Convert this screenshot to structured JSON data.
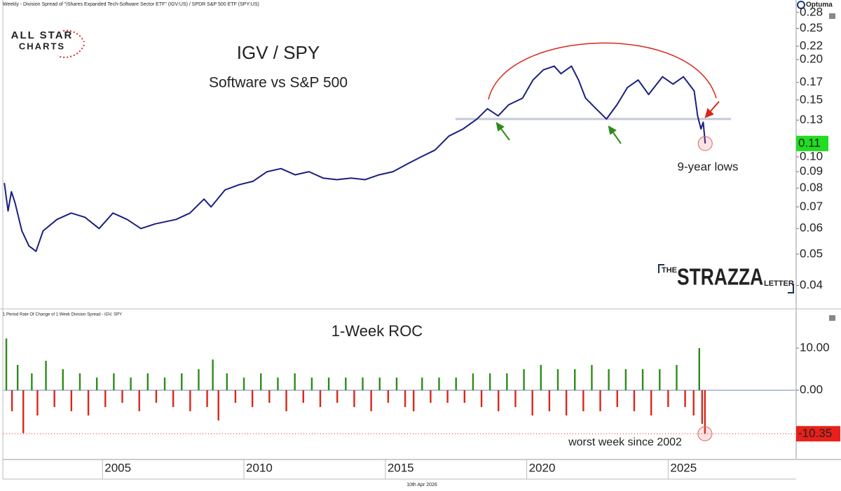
{
  "header": "Weekly - Division Spread of \"iShares Expanded Tech-Software Sector ETF\" (IGV:US) / SPDR S&P 500 ETF (SPY:US)",
  "brand": "Optuma",
  "date_label": "10th Apr 2026",
  "logo": {
    "line1": "ALL STAR",
    "line2": "CHARTS"
  },
  "strazza": {
    "the": "THE",
    "name": "STRAZZA",
    "letter": "LETTER"
  },
  "chart_data": [
    {
      "type": "line",
      "title": "IGV / SPY",
      "subtitle": "Software vs S&P 500",
      "annotation": "9-year lows",
      "color": "#1a1f80",
      "log_scale": true,
      "x": [
        2001.53,
        2001.66,
        2001.78,
        2001.91,
        2002.15,
        2002.4,
        2002.65,
        2002.9,
        2003.39,
        2003.89,
        2004.38,
        2004.88,
        2005.37,
        2005.87,
        2006.36,
        2006.86,
        2007.6,
        2008.09,
        2008.59,
        2008.84,
        2009.33,
        2009.83,
        2010.32,
        2010.82,
        2011.31,
        2011.81,
        2012.3,
        2012.8,
        2013.29,
        2013.79,
        2014.28,
        2014.78,
        2015.27,
        2015.77,
        2016.26,
        2016.76,
        2017.25,
        2017.75,
        2018.24,
        2018.61,
        2018.99,
        2019.36,
        2019.85,
        2020.22,
        2020.59,
        2020.97,
        2021.21,
        2021.58,
        2021.83,
        2022.08,
        2022.45,
        2022.82,
        2023.19,
        2023.56,
        2023.94,
        2024.31,
        2024.8,
        2025.17,
        2025.54,
        2025.92,
        2026.04,
        2026.16,
        2026.24,
        2026.31
      ],
      "values": [
        0.083,
        0.068,
        0.078,
        0.072,
        0.059,
        0.053,
        0.051,
        0.059,
        0.064,
        0.067,
        0.065,
        0.06,
        0.067,
        0.064,
        0.06,
        0.062,
        0.064,
        0.067,
        0.074,
        0.07,
        0.079,
        0.082,
        0.084,
        0.09,
        0.092,
        0.088,
        0.09,
        0.086,
        0.085,
        0.086,
        0.085,
        0.088,
        0.09,
        0.095,
        0.1,
        0.105,
        0.116,
        0.122,
        0.131,
        0.141,
        0.134,
        0.145,
        0.152,
        0.173,
        0.186,
        0.191,
        0.181,
        0.191,
        0.173,
        0.152,
        0.141,
        0.131,
        0.145,
        0.164,
        0.173,
        0.156,
        0.177,
        0.168,
        0.177,
        0.16,
        0.134,
        0.122,
        0.128,
        0.11
      ],
      "xlim": [
        2001.5,
        2029.5
      ],
      "ylim": [
        0.034,
        0.306
      ],
      "yticks": [
        0.28,
        0.25,
        0.22,
        {
          "value": 0.2,
          "label": "0.20"
        },
        0.17,
        0.15,
        0.13,
        {
          "value": 0.1,
          "label": "0.10"
        },
        0.09,
        0.08,
        0.07,
        0.06,
        0.05,
        0.04
      ],
      "last_value": 0.11,
      "last_value_color": "#22dd22",
      "support_level": 0.131
    },
    {
      "type": "bar",
      "title": "1-Week ROC",
      "header": "1 Period Rate Of Change of 1 Week Division Spread - IGV, SPY",
      "annotation": "worst week since 2002",
      "positive_color": "#2e8b1a",
      "negative_color": "#d8281c",
      "x": [
        2001.6,
        2001.8,
        2002.0,
        2002.2,
        2002.5,
        2002.7,
        2003.0,
        2003.3,
        2003.6,
        2003.9,
        2004.2,
        2004.5,
        2004.8,
        2005.1,
        2005.4,
        2005.7,
        2006.0,
        2006.3,
        2006.6,
        2006.9,
        2007.2,
        2007.5,
        2007.8,
        2008.1,
        2008.4,
        2008.7,
        2008.9,
        2009.1,
        2009.4,
        2009.7,
        2010.0,
        2010.3,
        2010.6,
        2010.9,
        2011.2,
        2011.5,
        2011.8,
        2012.1,
        2012.4,
        2012.7,
        2013.0,
        2013.3,
        2013.6,
        2013.9,
        2014.2,
        2014.5,
        2014.8,
        2015.1,
        2015.4,
        2015.7,
        2016.0,
        2016.3,
        2016.6,
        2016.9,
        2017.2,
        2017.5,
        2017.8,
        2018.1,
        2018.4,
        2018.7,
        2019.0,
        2019.3,
        2019.6,
        2019.9,
        2020.2,
        2020.5,
        2020.8,
        2021.1,
        2021.4,
        2021.7,
        2022.0,
        2022.3,
        2022.6,
        2022.9,
        2023.2,
        2023.5,
        2023.8,
        2024.1,
        2024.4,
        2024.7,
        2025.0,
        2025.3,
        2025.6,
        2025.9,
        2026.1,
        2026.2,
        2026.3
      ],
      "values": [
        12.3,
        -5,
        6,
        -10.2,
        4,
        -6,
        7,
        -4,
        5,
        -5,
        4,
        -6,
        3,
        -4,
        4,
        -3,
        3,
        -5,
        4,
        -3,
        3,
        -4,
        4,
        -5,
        5,
        -4,
        7.3,
        -7.2,
        4,
        -3,
        3,
        -4,
        4,
        -3,
        3,
        -5,
        4,
        -3,
        3,
        -4,
        3,
        -3,
        3,
        -4,
        3,
        -5,
        3,
        -3,
        3,
        -4,
        -5,
        3,
        -3,
        3,
        -3,
        3,
        -3,
        4,
        -4,
        4,
        -5,
        4,
        -4,
        5,
        -6,
        6,
        -5,
        5,
        -6,
        5,
        -5,
        6,
        -5,
        5,
        -4,
        5,
        -5,
        5,
        -6,
        5,
        -4,
        6,
        -4,
        -6,
        10,
        -8,
        -10.35
      ],
      "xlim": [
        2001.5,
        2029.5
      ],
      "ylim": [
        -16.3,
        19
      ],
      "yticks": [
        {
          "value": 10,
          "label": "10.00"
        },
        {
          "value": 0,
          "label": "0.00"
        }
      ],
      "xticks": [
        2005,
        2010,
        2015,
        2020,
        2025
      ],
      "last_value": -10.35,
      "last_value_color": "#e8201a"
    }
  ]
}
